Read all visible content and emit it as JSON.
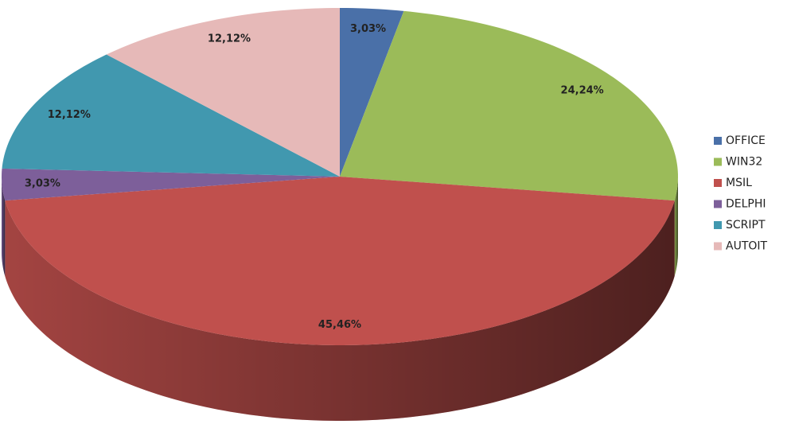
{
  "chart_data": {
    "type": "pie",
    "categories": [
      "OFFICE",
      "WIN32",
      "MSIL",
      "DELPHI",
      "SCRIPT",
      "AUTOIT"
    ],
    "values": [
      3.03,
      24.24,
      45.46,
      3.03,
      12.12,
      12.12
    ],
    "value_labels": [
      "3,03%",
      "24,24%",
      "45,46%",
      "3,03%",
      "12,12%",
      "12,12%"
    ],
    "colors": [
      "#4a70a8",
      "#9bbb59",
      "#c0504d",
      "#7d5f9a",
      "#4198af",
      "#e6b9b8"
    ],
    "legend": "right"
  }
}
